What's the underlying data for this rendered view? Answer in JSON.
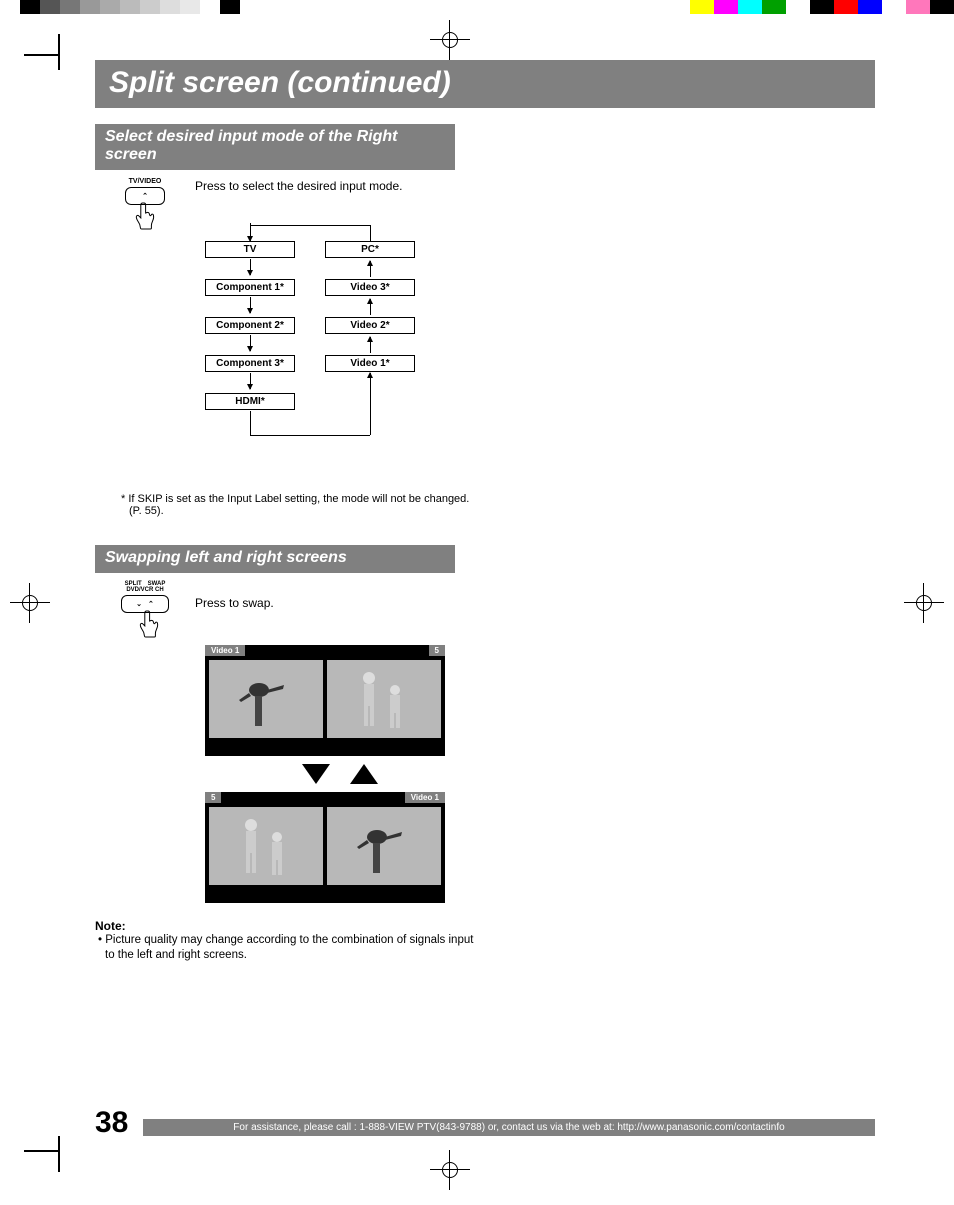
{
  "printMarks": {
    "leftSwatches": [
      "#ffffff",
      "#000000",
      "#555555",
      "#777777",
      "#999999",
      "#aaaaaa",
      "#bbbbbb",
      "#cccccc",
      "#dddddd",
      "#e8e8e8",
      "#ffffff",
      "#000000",
      "#ffffff"
    ],
    "rightSwatches": [
      "#ffff00",
      "#ff00ff",
      "#00ffff",
      "#00a000",
      "#ffffff",
      "#000000",
      "#ff0000",
      "#0000ff",
      "#ffffff",
      "#ff77bb",
      "#000000"
    ]
  },
  "page": {
    "number": "38",
    "chapterTitle": "Split screen (continued)",
    "footer": "For assistance, please call : 1-888-VIEW PTV(843-9788) or, contact us via the web at: http://www.panasonic.com/contactinfo"
  },
  "section1": {
    "heading": "Select desired input mode of the Right screen",
    "buttonLabel": "TV/VIDEO",
    "instruction": "Press to select the desired input mode.",
    "flow": {
      "left": [
        "TV",
        "Component 1*",
        "Component 2*",
        "Component 3*",
        "HDMI*"
      ],
      "right": [
        "PC*",
        "Video 3*",
        "Video 2*",
        "Video 1*"
      ]
    },
    "footnote": "* If SKIP is set as the Input Label setting, the mode will not be changed. (P. 55)."
  },
  "section2": {
    "heading": "Swapping left and right screens",
    "topLabels": {
      "split": "SPLIT",
      "swap": "SWAP",
      "sub": "DVD/VCR CH"
    },
    "instruction": "Press to swap.",
    "screenA": {
      "leftLabel": "Video 1",
      "rightLabel": "5"
    },
    "screenB": {
      "leftLabel": "5",
      "rightLabel": "Video 1"
    },
    "note": {
      "head": "Note:",
      "item": "• Picture quality may change according to the combination of signals input to the left and right screens."
    }
  }
}
